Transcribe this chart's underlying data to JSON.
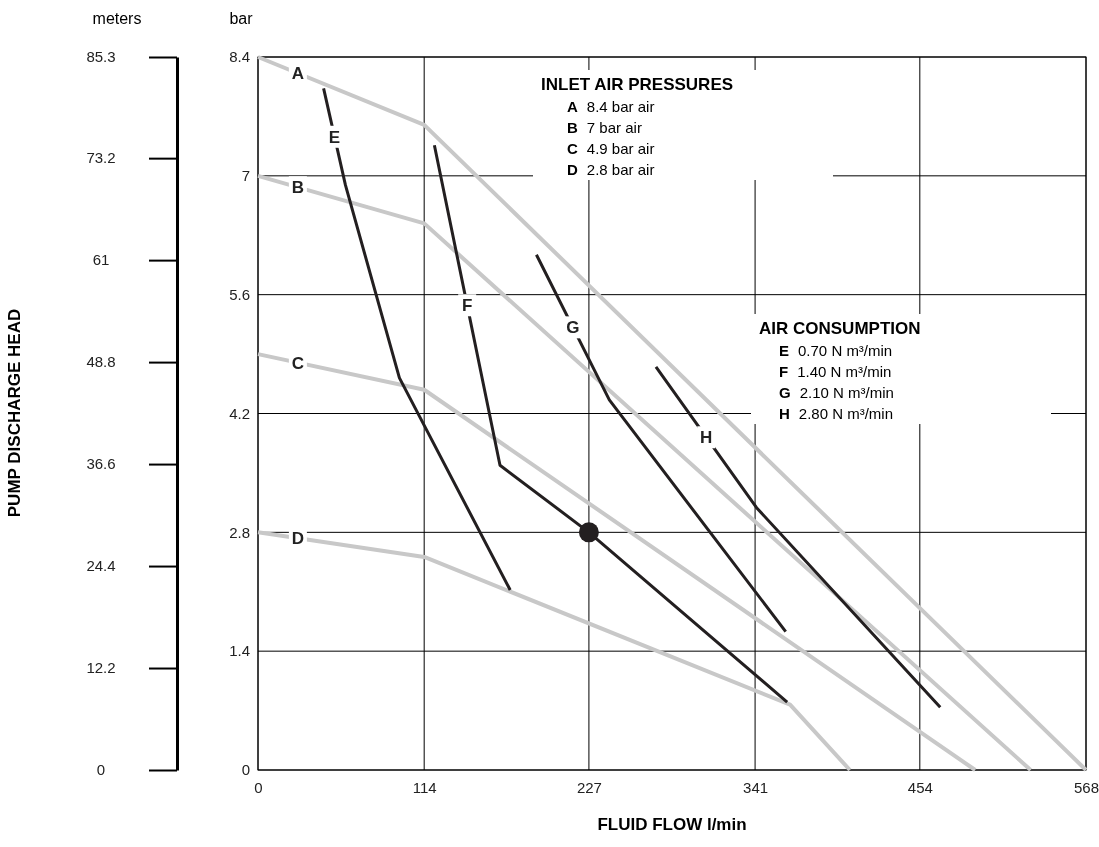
{
  "chart_data": {
    "type": "line",
    "xlabel": "FLUID FLOW l/min",
    "ylabel": "bar",
    "y2label": "meters",
    "xlim": [
      0,
      568
    ],
    "xticks": [
      0,
      114,
      227,
      341,
      454,
      568
    ],
    "ylim": [
      0,
      8.4
    ],
    "yticks": [
      0,
      1.4,
      2.8,
      4.2,
      5.6,
      7.0,
      8.4
    ],
    "y2lim": [
      0,
      85.3
    ],
    "y2ticks": [
      0,
      12.2,
      24.4,
      36.6,
      48.8,
      61.0,
      73.2,
      85.3
    ],
    "grid": true,
    "line_style": "solid",
    "series": [
      {
        "name": "A",
        "color": "#c8c8c8",
        "x": [
          0,
          114,
          568
        ],
        "values": [
          8.4,
          7.6,
          0
        ]
      },
      {
        "name": "B",
        "color": "#c8c8c8",
        "x": [
          0,
          114,
          530
        ],
        "values": [
          7.0,
          6.44,
          0
        ]
      },
      {
        "name": "C",
        "color": "#c8c8c8",
        "x": [
          0,
          114,
          492
        ],
        "values": [
          4.9,
          4.48,
          0
        ]
      },
      {
        "name": "D",
        "color": "#c8c8c8",
        "x": [
          0,
          114,
          365,
          406
        ],
        "values": [
          2.8,
          2.51,
          0.77,
          0
        ]
      },
      {
        "name": "E",
        "color": "#231f20",
        "x": [
          45,
          60,
          97,
          173
        ],
        "values": [
          8.03,
          6.89,
          4.62,
          2.12
        ]
      },
      {
        "name": "F",
        "color": "#231f20",
        "x": [
          121,
          166,
          227,
          363
        ],
        "values": [
          7.36,
          3.59,
          2.8,
          0.8
        ]
      },
      {
        "name": "G",
        "color": "#231f20",
        "x": [
          191,
          241,
          362
        ],
        "values": [
          6.07,
          4.36,
          1.63
        ]
      },
      {
        "name": "H",
        "color": "#231f20",
        "x": [
          273,
          342,
          468
        ],
        "values": [
          4.75,
          3.09,
          0.74
        ]
      },
      {
        "type": "scatter",
        "color": "#231f20",
        "x": [
          227
        ],
        "values": [
          2.8
        ]
      }
    ],
    "annotations": [
      "PUMP DISCHARGE HEAD",
      "INLET AIR PRESSURES",
      "A 8.4 bar air",
      "B 7 bar air",
      "C 4.9 bar air",
      "D 2.8 bar air",
      "AIR CONSUMPTION",
      "E 0.70 N m³/min",
      "F 1.40 N m³/min",
      "G 2.10 N m³/min",
      "H 2.80 N m³/min"
    ]
  }
}
